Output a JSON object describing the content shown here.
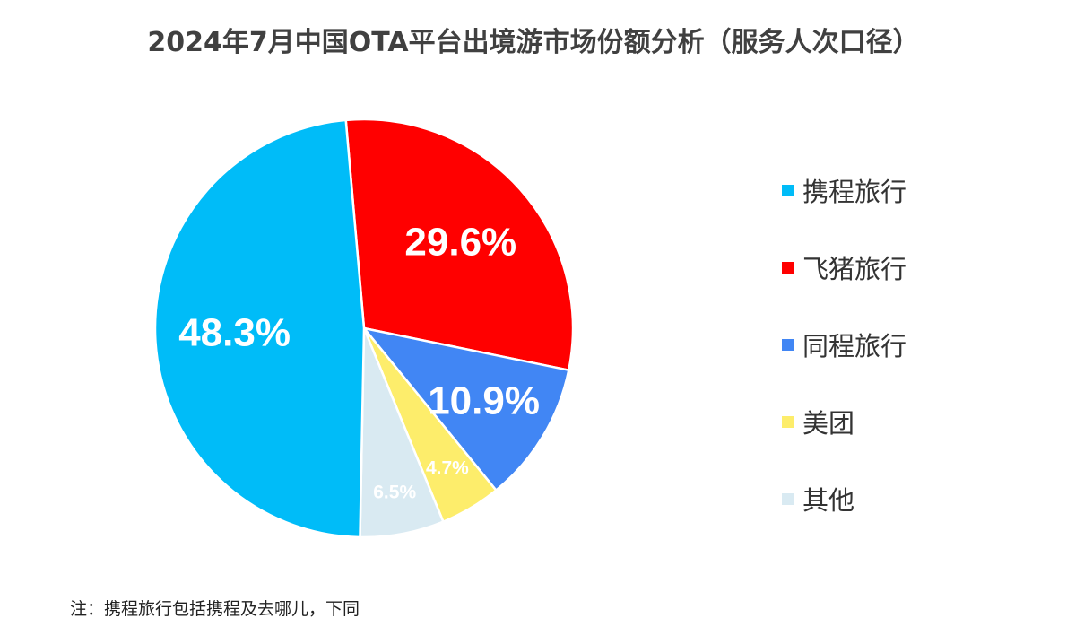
{
  "chart_data": {
    "type": "pie",
    "title": "2024年7月中国OTA平台出境游市场份额分析（服务人次口径）",
    "unit": "%",
    "slices": [
      {
        "name": "携程旅行",
        "value": 48.3,
        "label": "48.3%",
        "color": "#00BCF8"
      },
      {
        "name": "飞猪旅行",
        "value": 29.6,
        "label": "29.6%",
        "color": "#FF0000"
      },
      {
        "name": "同程旅行",
        "value": 10.9,
        "label": "10.9%",
        "color": "#4186F4"
      },
      {
        "name": "美团",
        "value": 4.7,
        "label": "4.7%",
        "color": "#FDED6B"
      },
      {
        "name": "其他",
        "value": 6.5,
        "label": "6.5%",
        "color": "#D9EAF2"
      }
    ],
    "legend_position": "right"
  },
  "footnote": "注：携程旅行包括携程及去哪儿，下同"
}
